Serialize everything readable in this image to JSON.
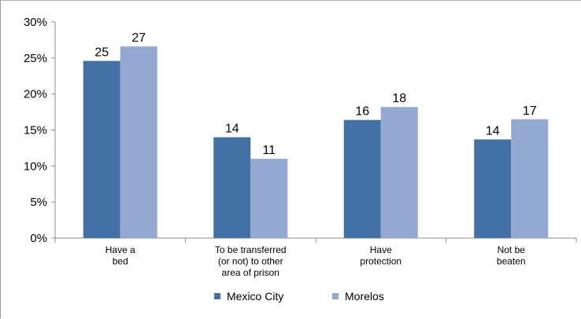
{
  "chart_data": {
    "type": "bar",
    "categories": [
      [
        "Have a",
        "bed"
      ],
      [
        "To be transferred",
        "(or not) to other",
        "area of prison"
      ],
      [
        "Have",
        "protection"
      ],
      [
        "Not be",
        "beaten"
      ]
    ],
    "series": [
      {
        "name": "Mexico City",
        "values": [
          24.6,
          14.0,
          16.4,
          13.7
        ],
        "labels": [
          "25",
          "14",
          "16",
          "14"
        ],
        "color": "#4471A5"
      },
      {
        "name": "Morelos",
        "values": [
          26.6,
          11.0,
          18.2,
          16.5
        ],
        "labels": [
          "27",
          "11",
          "18",
          "17"
        ],
        "color": "#93A9D1"
      }
    ],
    "ylim": [
      0,
      30
    ],
    "yticks": [
      "0%",
      "5%",
      "10%",
      "15%",
      "20%",
      "25%",
      "30%"
    ],
    "grid": false,
    "legend_position": "bottom"
  }
}
